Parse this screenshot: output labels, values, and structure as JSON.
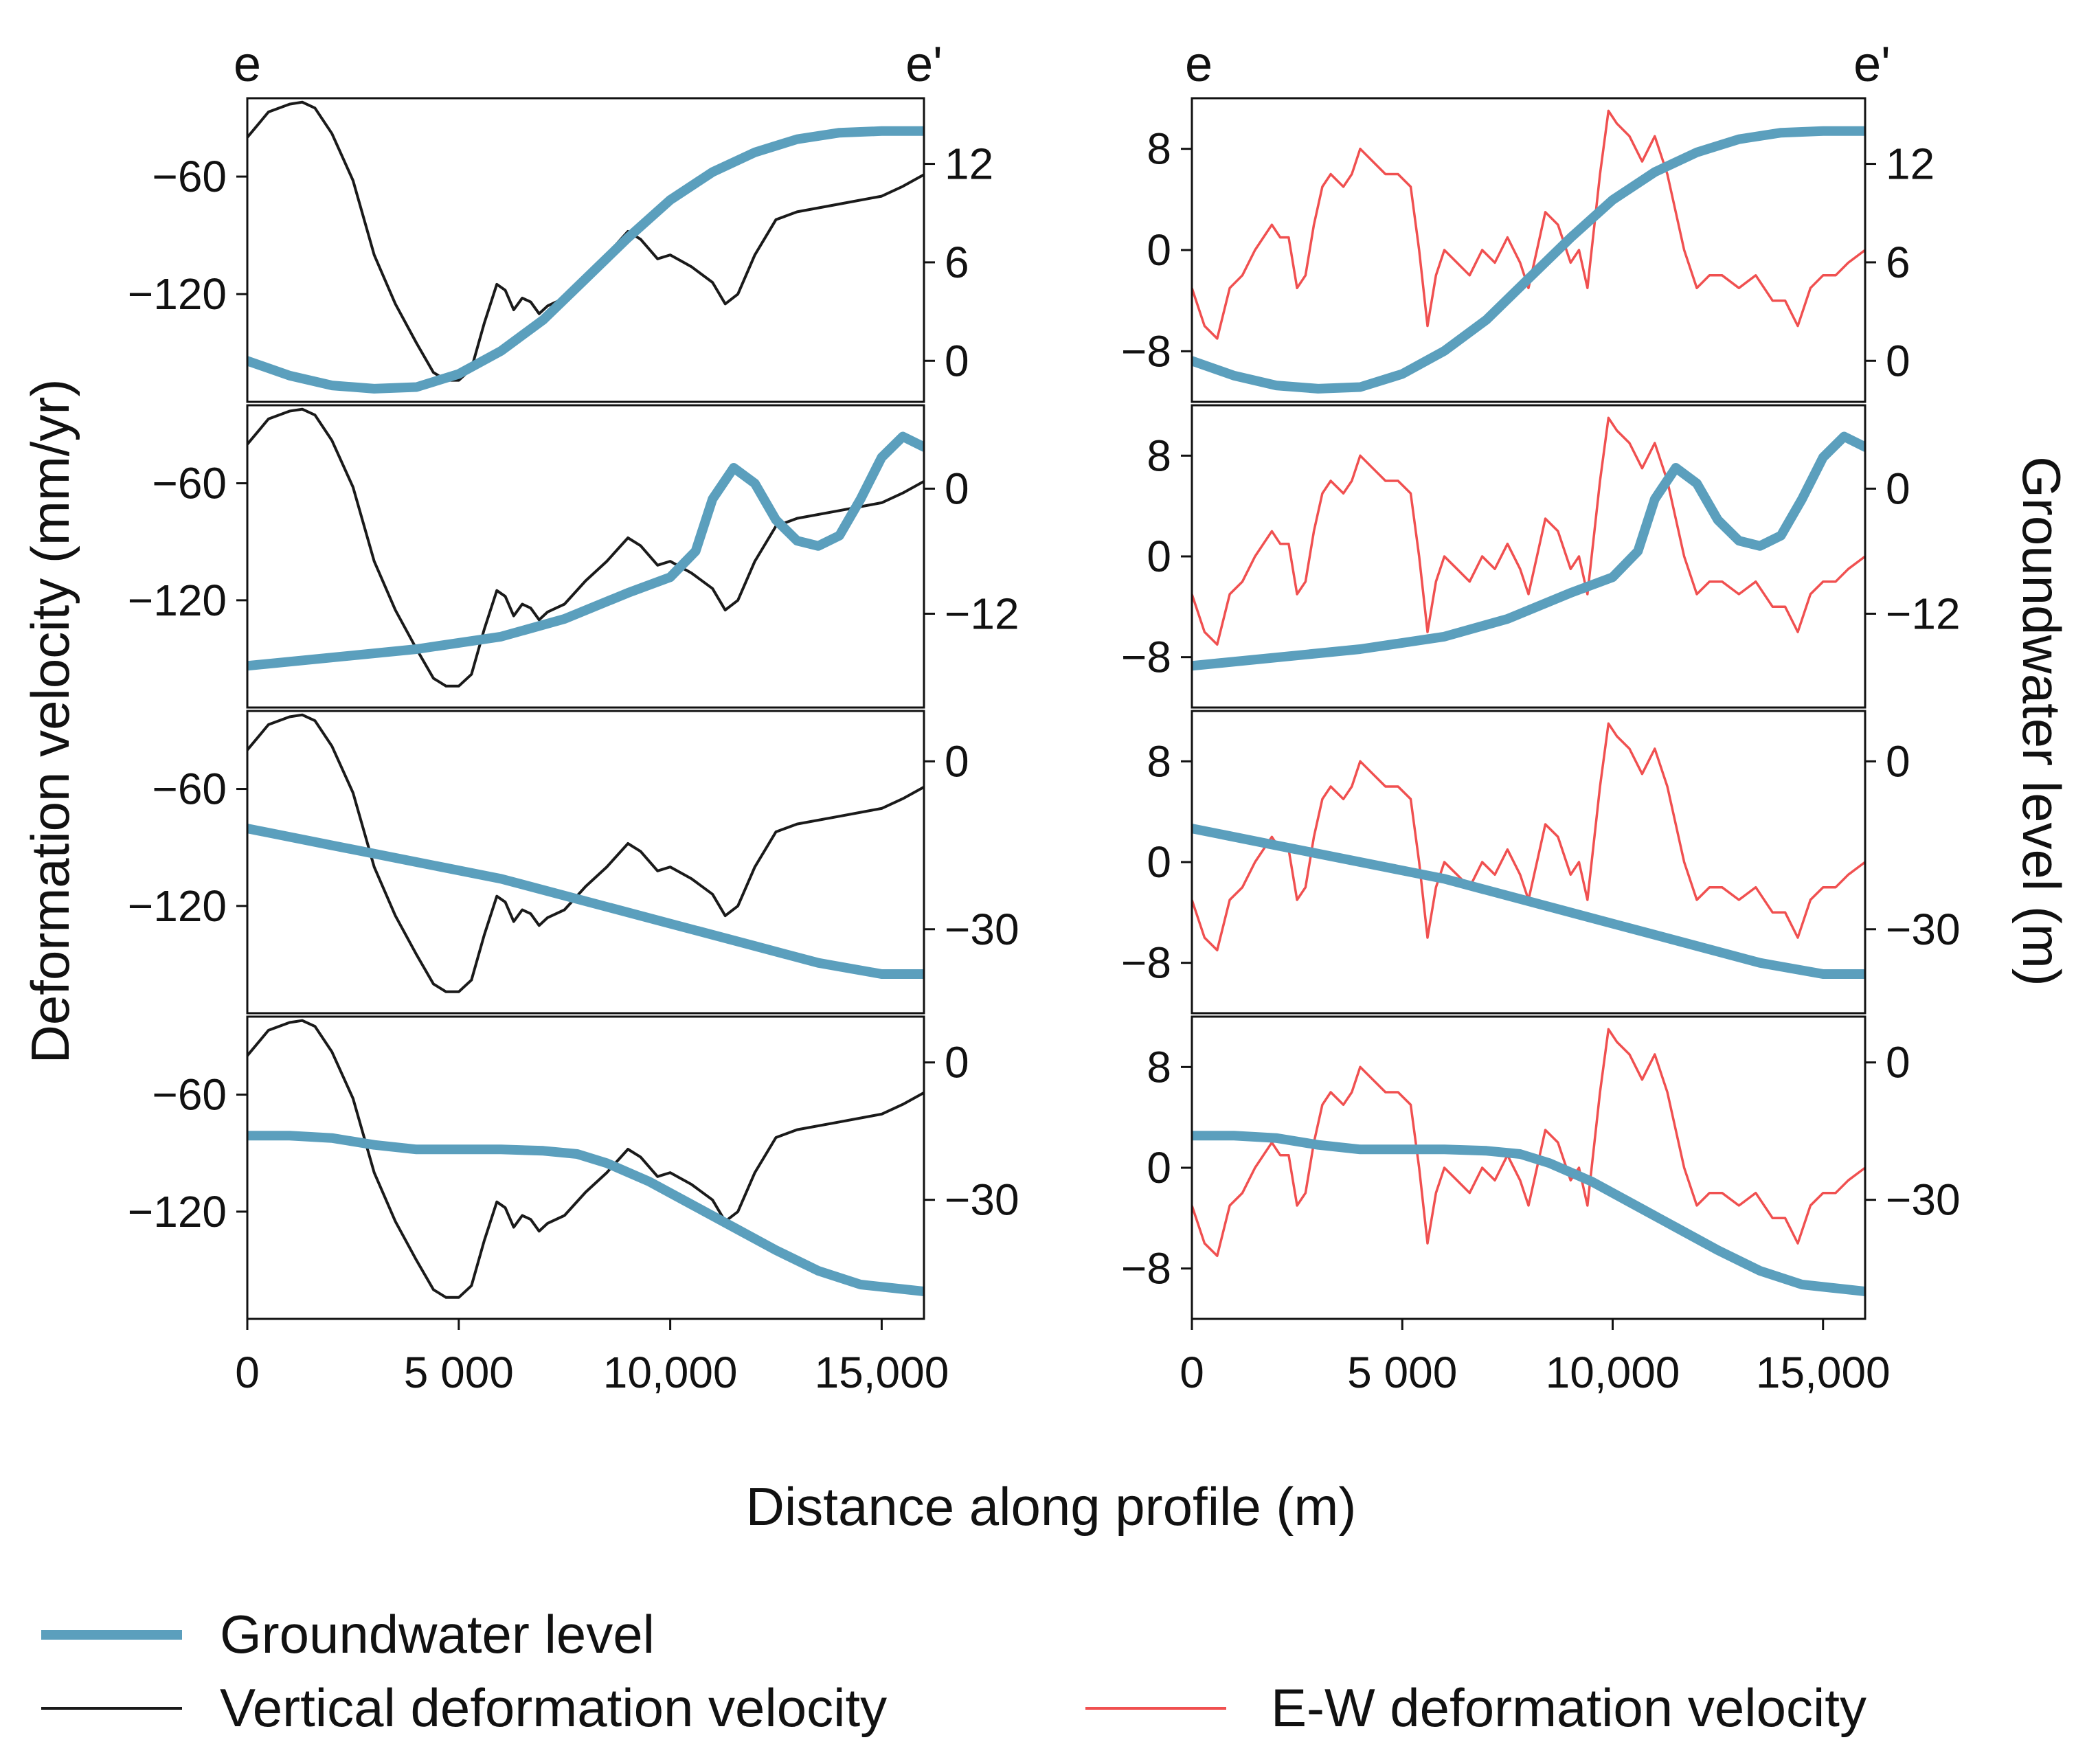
{
  "figure": {
    "x_title": "Distance along profile (m)",
    "y_left_title": "Deformation velocity (mm/yr)",
    "y_right_title": "Groundwater level (m)",
    "profile_start": "e",
    "profile_end": "e'"
  },
  "legend": {
    "groundwater": "Groundwater level",
    "vertical": "Vertical deformation velocity",
    "ew": "E-W deformation velocity"
  },
  "colors": {
    "groundwater": "#5b9fbd",
    "vertical": "#1a1a1a",
    "ew": "#f05050",
    "frame": "#111111"
  },
  "chart_data": {
    "type": "line",
    "x_label": "Distance along profile (m)",
    "xlim": [
      0,
      16000
    ],
    "x_ticks": [
      0,
      5000,
      10000,
      15000
    ],
    "x_tick_labels": [
      "0",
      "5 000",
      "10,000",
      "15,000"
    ],
    "series_style": {
      "vertical": "thin black line, left axis (mm/yr)",
      "ew": "thin red line, left axis (mm/yr)",
      "groundwater": "thick blue line, right axis (m)"
    },
    "columns": [
      {
        "name": "left",
        "left_series": "vertical",
        "left_label": "Vertical deformation velocity",
        "ylim": [
          -175,
          -20
        ],
        "y_ticks": [
          -60,
          -120
        ],
        "y_tick_labels": [
          "−60",
          "−120"
        ],
        "x": [
          0,
          500,
          1000,
          1300,
          1600,
          2000,
          2500,
          3000,
          3500,
          4000,
          4400,
          4700,
          5000,
          5300,
          5600,
          5900,
          6100,
          6300,
          6500,
          6700,
          6900,
          7100,
          7500,
          8000,
          8500,
          9000,
          9300,
          9700,
          10000,
          10500,
          11000,
          11300,
          11600,
          12000,
          12500,
          13000,
          14000,
          15000,
          15500,
          16000
        ],
        "values": [
          -40,
          -27,
          -23,
          -22,
          -25,
          -38,
          -62,
          -100,
          -125,
          -145,
          -160,
          -164,
          -164,
          -158,
          -135,
          -115,
          -118,
          -128,
          -122,
          -124,
          -130,
          -126,
          -122,
          -110,
          -100,
          -88,
          -92,
          -102,
          -100,
          -106,
          -114,
          -125,
          -120,
          -100,
          -82,
          -78,
          -74,
          -70,
          -65,
          -59
        ]
      },
      {
        "name": "right",
        "left_series": "ew",
        "left_label": "E-W deformation velocity",
        "ylim": [
          -12,
          12
        ],
        "y_ticks": [
          8,
          0,
          -8
        ],
        "y_tick_labels": [
          "8",
          "0",
          "−8"
        ],
        "x": [
          0,
          300,
          600,
          900,
          1200,
          1500,
          1700,
          1900,
          2100,
          2300,
          2500,
          2700,
          2900,
          3100,
          3300,
          3600,
          3800,
          4000,
          4300,
          4600,
          4900,
          5200,
          5400,
          5600,
          5800,
          6000,
          6300,
          6600,
          6900,
          7200,
          7500,
          7800,
          8000,
          8200,
          8400,
          8700,
          9000,
          9200,
          9400,
          9700,
          9900,
          10100,
          10400,
          10700,
          11000,
          11300,
          11700,
          12000,
          12300,
          12600,
          13000,
          13400,
          13800,
          14100,
          14400,
          14700,
          15000,
          15300,
          15600,
          16000
        ],
        "values": [
          -3,
          -6,
          -7,
          -3,
          -2,
          0,
          1,
          2,
          1,
          1,
          -3,
          -2,
          2,
          5,
          6,
          5,
          6,
          8,
          7,
          6,
          6,
          5,
          0,
          -6,
          -2,
          0,
          -1,
          -2,
          0,
          -1,
          1,
          -1,
          -3,
          0,
          3,
          2,
          -1,
          0,
          -3,
          6,
          11,
          10,
          9,
          7,
          9,
          6,
          0,
          -3,
          -2,
          -2,
          -3,
          -2,
          -4,
          -4,
          -6,
          -3,
          -2,
          -2,
          -1,
          0
        ]
      }
    ],
    "rows": [
      {
        "right_ylim": [
          -2.5,
          16
        ],
        "right_ticks": [
          12,
          6,
          0
        ],
        "right_tick_labels": [
          "12",
          "6",
          "0"
        ],
        "groundwater_x": [
          0,
          1000,
          2000,
          3000,
          4000,
          5000,
          6000,
          7000,
          8000,
          9000,
          10000,
          11000,
          12000,
          13000,
          14000,
          15000,
          16000
        ],
        "groundwater": [
          0,
          -0.9,
          -1.5,
          -1.7,
          -1.6,
          -0.8,
          0.6,
          2.5,
          5,
          7.5,
          9.8,
          11.5,
          12.7,
          13.5,
          13.9,
          14,
          14
        ]
      },
      {
        "right_ylim": [
          -21,
          8
        ],
        "right_ticks": [
          0,
          -12
        ],
        "right_tick_labels": [
          "0",
          "−12"
        ],
        "groundwater_x": [
          0,
          2000,
          4000,
          6000,
          7500,
          9000,
          10000,
          10600,
          11000,
          11500,
          12000,
          12500,
          13000,
          13500,
          14000,
          14500,
          15000,
          15500,
          16000
        ],
        "groundwater": [
          -17,
          -16.2,
          -15.4,
          -14.2,
          -12.5,
          -10,
          -8.5,
          -6,
          -1,
          2,
          0.5,
          -3,
          -5,
          -5.5,
          -4.5,
          -1,
          3,
          5,
          4
        ]
      },
      {
        "right_ylim": [
          -45,
          9
        ],
        "right_ticks": [
          0,
          -30
        ],
        "right_tick_labels": [
          "0",
          "−30"
        ],
        "groundwater_x": [
          0,
          2000,
          4000,
          6000,
          8000,
          10000,
          12000,
          13500,
          15000,
          16000
        ],
        "groundwater": [
          -12,
          -15,
          -18,
          -21,
          -25,
          -29,
          -33,
          -36,
          -38,
          -38
        ]
      },
      {
        "right_ylim": [
          -56,
          10
        ],
        "right_ticks": [
          0,
          -30
        ],
        "right_tick_labels": [
          "0",
          "−30"
        ],
        "groundwater_x": [
          0,
          1000,
          2000,
          3000,
          4000,
          5000,
          6000,
          7000,
          7800,
          8500,
          9500,
          10500,
          11500,
          12500,
          13500,
          14500,
          15500,
          16000
        ],
        "groundwater": [
          -16,
          -16,
          -16.5,
          -18,
          -19,
          -19,
          -19,
          -19.3,
          -20,
          -22,
          -26,
          -31,
          -36,
          -41,
          -45.5,
          -48.5,
          -49.5,
          -50
        ]
      }
    ]
  }
}
